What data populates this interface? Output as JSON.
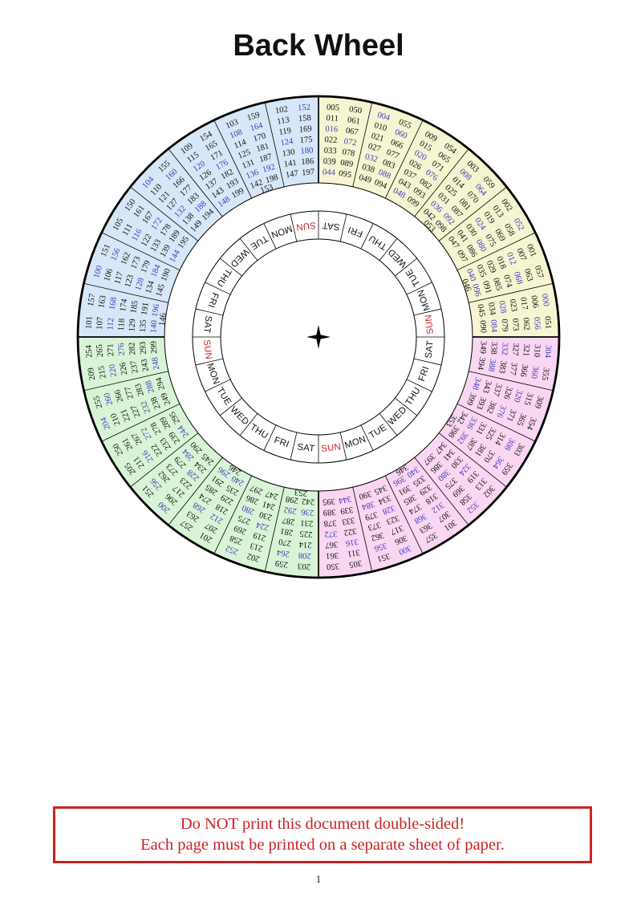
{
  "page": {
    "title": "Back Wheel",
    "page_number": "1"
  },
  "warning": {
    "line1": "Do NOT print this document double-sided!",
    "line2": "Each page must be printed on a separate sheet of paper."
  },
  "colors": {
    "quadrant_yellow": "#f5f5d2",
    "quadrant_pink": "#f9d6f2",
    "quadrant_green": "#d9f3d7",
    "quadrant_blue": "#d7e7f7",
    "leap_year_number": "#3d3dbb",
    "sunday_red": "#cc2222",
    "warning_red": "#cc2222",
    "line_black": "#000000"
  },
  "wheel": {
    "center_icon": "four-point-star",
    "day_ring": {
      "note_sunday_color": "SUN cells are red",
      "labels_cw_from_top": [
        "SAT",
        "FRI",
        "THU",
        "WED",
        "TUE",
        "MON",
        "SUN",
        "SAT",
        "FRI",
        "THU",
        "WED",
        "TUE",
        "MON",
        "SUN",
        "SAT",
        "FRI",
        "THU",
        "WED",
        "TUE",
        "MON",
        "SUN",
        "SAT",
        "FRI",
        "THU",
        "WED",
        "TUE",
        "MON",
        "SUN"
      ]
    },
    "sectors_cw_from_top": [
      {
        "quadrant": "yellow",
        "col1": [
          "005",
          "011",
          "016",
          "022",
          "033",
          "039",
          "044"
        ],
        "col2": [
          "050",
          "061",
          "067",
          "072",
          "078",
          "089",
          "095"
        ],
        "extra": null
      },
      {
        "quadrant": "yellow",
        "col1": [
          "004",
          "010",
          "021",
          "027",
          "032",
          "038",
          "049"
        ],
        "col2": [
          "055",
          "060",
          "066",
          "077",
          "083",
          "088",
          "094"
        ],
        "extra": null
      },
      {
        "quadrant": "yellow",
        "col1": [
          "009",
          "015",
          "020",
          "026",
          "037",
          "043",
          "048"
        ],
        "col2": [
          "054",
          "065",
          "071",
          "076",
          "082",
          "093",
          "099"
        ],
        "extra": null
      },
      {
        "quadrant": "yellow",
        "col1": [
          "003",
          "008",
          "014",
          "025",
          "031",
          "036",
          "042"
        ],
        "col2": [
          "059",
          "064",
          "070",
          "081",
          "087",
          "092",
          "098"
        ],
        "extra": "053"
      },
      {
        "quadrant": "yellow",
        "col1": [
          "002",
          "013",
          "019",
          "024",
          "030",
          "041",
          "047"
        ],
        "col2": [
          "052",
          "058",
          "069",
          "075",
          "080",
          "086",
          "097"
        ],
        "extra": null
      },
      {
        "quadrant": "yellow",
        "col1": [
          "001",
          "007",
          "012",
          "018",
          "029",
          "035",
          "040"
        ],
        "col2": [
          "057",
          "063",
          "068",
          "074",
          "085",
          "091",
          "096"
        ],
        "extra": "046"
      },
      {
        "quadrant": "yellow",
        "col1": [
          "000",
          "006",
          "017",
          "023",
          "028",
          "034",
          "045"
        ],
        "col2": [
          "051",
          "056",
          "062",
          "073",
          "079",
          "084",
          "090"
        ],
        "extra": null
      },
      {
        "quadrant": "pink",
        "col1": [
          "304",
          "310",
          "321",
          "327",
          "332",
          "338",
          "349"
        ],
        "col2": [
          "355",
          "360",
          "366",
          "377",
          "383",
          "388",
          "394"
        ],
        "extra": null
      },
      {
        "quadrant": "pink",
        "col1": [
          "309",
          "315",
          "320",
          "326",
          "337",
          "343",
          "348"
        ],
        "col2": [
          "354",
          "365",
          "371",
          "376",
          "382",
          "393",
          "399"
        ],
        "extra": null
      },
      {
        "quadrant": "pink",
        "col1": [
          "303",
          "308",
          "314",
          "325",
          "331",
          "336",
          "342"
        ],
        "col2": [
          "359",
          "364",
          "370",
          "381",
          "387",
          "392",
          "398"
        ],
        "extra": "353"
      },
      {
        "quadrant": "pink",
        "col1": [
          "302",
          "313",
          "319",
          "324",
          "330",
          "341",
          "347"
        ],
        "col2": [
          "352",
          "358",
          "369",
          "375",
          "380",
          "386",
          "397"
        ],
        "extra": null
      },
      {
        "quadrant": "pink",
        "col1": [
          "301",
          "307",
          "312",
          "318",
          "329",
          "335",
          "340"
        ],
        "col2": [
          "357",
          "363",
          "368",
          "374",
          "385",
          "391",
          "396"
        ],
        "extra": "346"
      },
      {
        "quadrant": "pink",
        "col1": [
          "300",
          "306",
          "317",
          "323",
          "328",
          "334",
          "345"
        ],
        "col2": [
          "351",
          "356",
          "362",
          "373",
          "379",
          "384",
          "390"
        ],
        "extra": null
      },
      {
        "quadrant": "pink",
        "col1": [
          "305",
          "311",
          "316",
          "322",
          "333",
          "339",
          "344"
        ],
        "col2": [
          "350",
          "361",
          "367",
          "372",
          "378",
          "389",
          "395"
        ],
        "extra": null
      },
      {
        "quadrant": "green",
        "col1": [
          "203",
          "208",
          "214",
          "225",
          "231",
          "236",
          "242"
        ],
        "col2": [
          "259",
          "264",
          "270",
          "281",
          "287",
          "292",
          "298"
        ],
        "extra": "253"
      },
      {
        "quadrant": "green",
        "col1": [
          "202",
          "213",
          "219",
          "224",
          "230",
          "241",
          "247"
        ],
        "col2": [
          "252",
          "258",
          "269",
          "275",
          "280",
          "286",
          "297"
        ],
        "extra": null
      },
      {
        "quadrant": "green",
        "col1": [
          "201",
          "207",
          "212",
          "218",
          "229",
          "235",
          "240"
        ],
        "col2": [
          "257",
          "263",
          "268",
          "274",
          "285",
          "291",
          "296"
        ],
        "extra": "246"
      },
      {
        "quadrant": "green",
        "col1": [
          "200",
          "206",
          "217",
          "223",
          "228",
          "234",
          "245"
        ],
        "col2": [
          "251",
          "256",
          "262",
          "273",
          "279",
          "284",
          "290"
        ],
        "extra": null
      },
      {
        "quadrant": "green",
        "col1": [
          "205",
          "211",
          "216",
          "222",
          "233",
          "239",
          "244"
        ],
        "col2": [
          "250",
          "261",
          "267",
          "272",
          "278",
          "289",
          "295"
        ],
        "extra": null
      },
      {
        "quadrant": "green",
        "col1": [
          "204",
          "210",
          "221",
          "227",
          "232",
          "238",
          "249"
        ],
        "col2": [
          "255",
          "260",
          "266",
          "277",
          "283",
          "288",
          "294"
        ],
        "extra": null
      },
      {
        "quadrant": "green",
        "col1": [
          "209",
          "215",
          "220",
          "226",
          "237",
          "243",
          "248"
        ],
        "col2": [
          "254",
          "265",
          "271",
          "276",
          "282",
          "293",
          "299"
        ],
        "extra": null
      },
      {
        "quadrant": "blue",
        "col1": [
          "101",
          "107",
          "112",
          "118",
          "129",
          "135",
          "140"
        ],
        "col2": [
          "157",
          "163",
          "168",
          "174",
          "185",
          "191",
          "196"
        ],
        "extra": "146"
      },
      {
        "quadrant": "blue",
        "col1": [
          "100",
          "106",
          "117",
          "123",
          "128",
          "134",
          "145"
        ],
        "col2": [
          "151",
          "156",
          "162",
          "173",
          "179",
          "184",
          "190"
        ],
        "extra": null
      },
      {
        "quadrant": "blue",
        "col1": [
          "105",
          "111",
          "116",
          "122",
          "133",
          "139",
          "144"
        ],
        "col2": [
          "150",
          "161",
          "167",
          "172",
          "178",
          "189",
          "195"
        ],
        "extra": null
      },
      {
        "quadrant": "blue",
        "col1": [
          "104",
          "110",
          "121",
          "127",
          "132",
          "138",
          "149"
        ],
        "col2": [
          "155",
          "160",
          "166",
          "177",
          "183",
          "188",
          "194"
        ],
        "extra": null
      },
      {
        "quadrant": "blue",
        "col1": [
          "109",
          "115",
          "120",
          "126",
          "137",
          "143",
          "148"
        ],
        "col2": [
          "154",
          "165",
          "171",
          "176",
          "182",
          "193",
          "199"
        ],
        "extra": null
      },
      {
        "quadrant": "blue",
        "col1": [
          "103",
          "108",
          "114",
          "125",
          "131",
          "136",
          "142"
        ],
        "col2": [
          "159",
          "164",
          "170",
          "181",
          "187",
          "192",
          "198"
        ],
        "extra": "153"
      },
      {
        "quadrant": "blue",
        "col1": [
          "102",
          "113",
          "119",
          "124",
          "130",
          "141",
          "147"
        ],
        "col2": [
          "152",
          "158",
          "169",
          "175",
          "180",
          "186",
          "197"
        ],
        "extra": null
      }
    ]
  }
}
